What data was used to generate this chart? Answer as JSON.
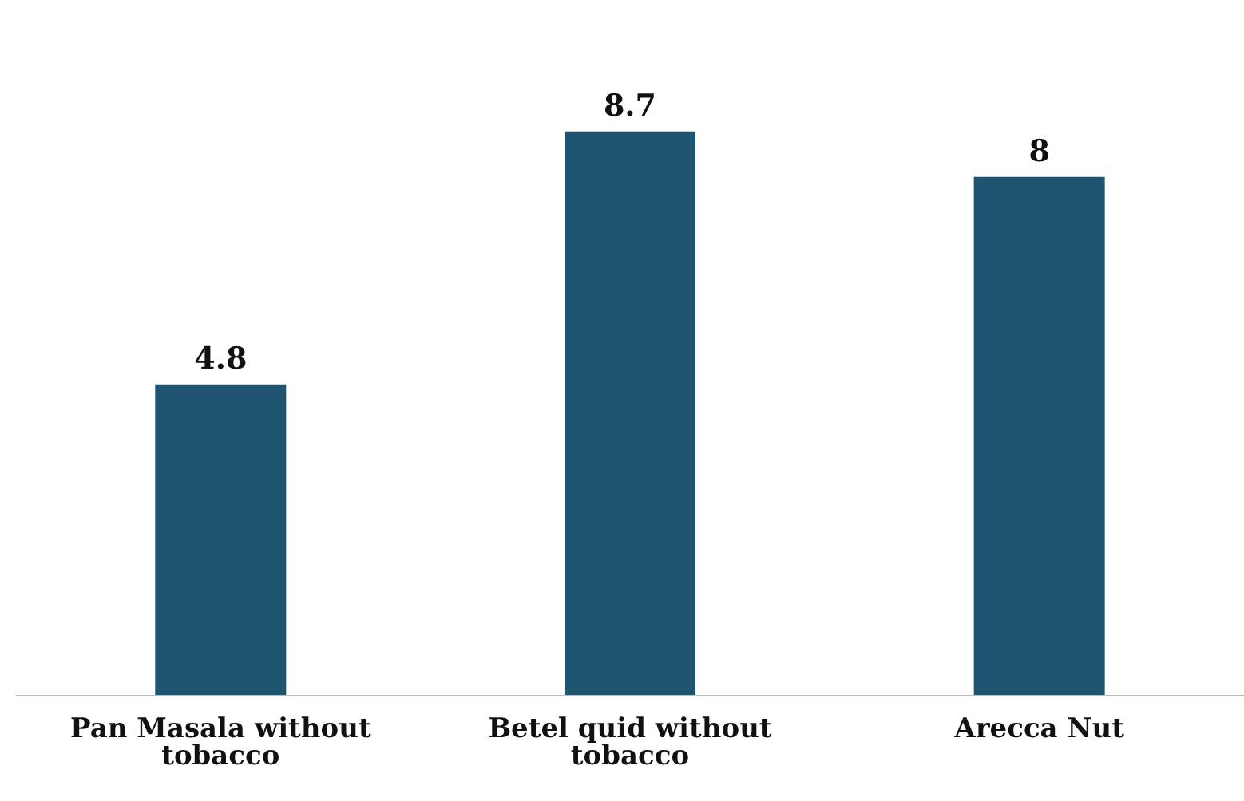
{
  "chart_data": {
    "type": "bar",
    "categories": [
      "Pan Masala without tobacco",
      "Betel quid without tobacco",
      "Arecca Nut"
    ],
    "values": [
      4.8,
      8.7,
      8
    ],
    "color": "#1f5470",
    "data_labels": true
  }
}
